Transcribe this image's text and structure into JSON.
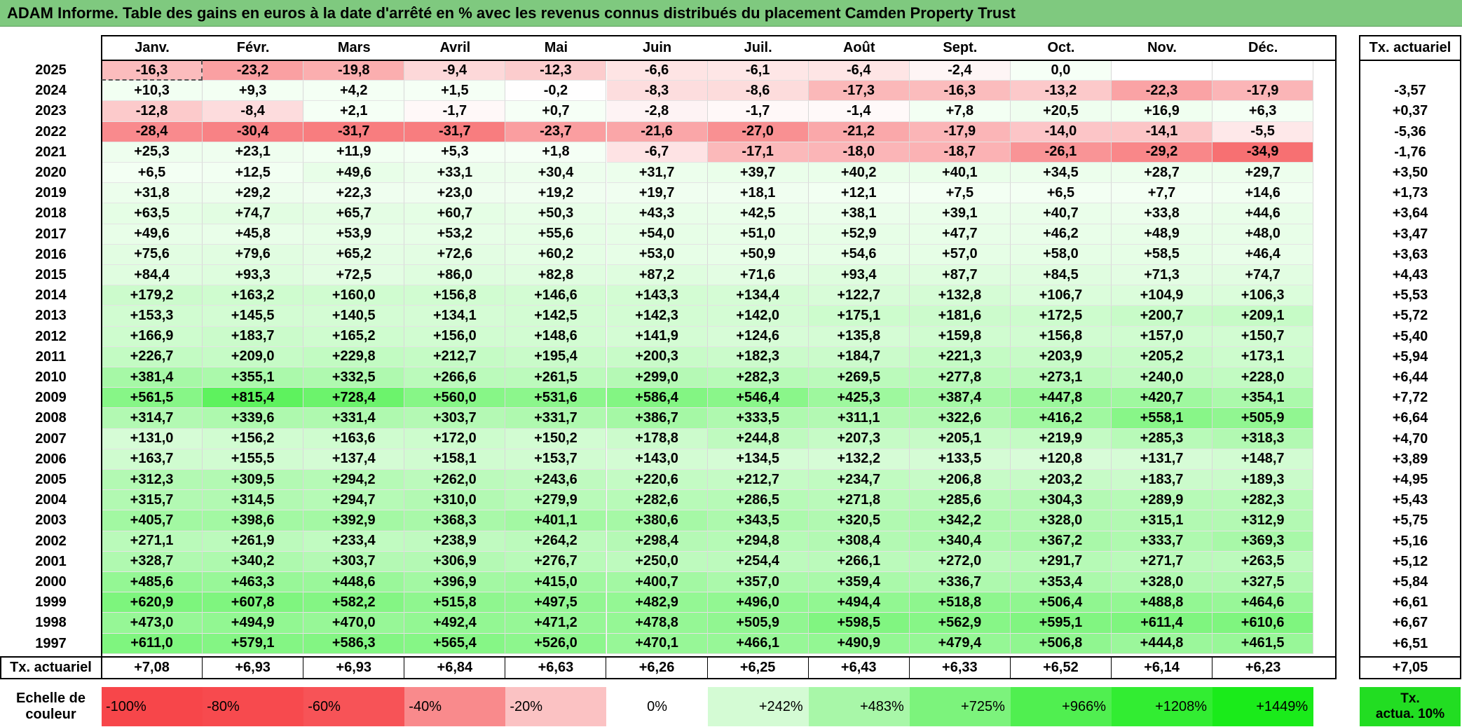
{
  "title": "ADAM Informe. Table des gains en euros à la date d'arrêté en % avec les revenus connus distribués du placement Camden Property Trust",
  "months": [
    "Janv.",
    "Févr.",
    "Mars",
    "Avril",
    "Mai",
    "Juin",
    "Juil.",
    "Août",
    "Sept.",
    "Oct.",
    "Nov.",
    "Déc."
  ],
  "annual_header": "Tx. actuariel",
  "rows": [
    {
      "year": "2025",
      "values": [
        "-16,3",
        "-23,2",
        "-19,8",
        "-9,4",
        "-12,3",
        "-6,6",
        "-6,1",
        "-6,4",
        "-2,4",
        "0,0",
        "",
        ""
      ],
      "rate": ""
    },
    {
      "year": "2024",
      "values": [
        "+10,3",
        "+9,3",
        "+4,2",
        "+1,5",
        "-0,2",
        "-8,3",
        "-8,6",
        "-17,3",
        "-16,3",
        "-13,2",
        "-22,3",
        "-17,9"
      ],
      "rate": "-3,57"
    },
    {
      "year": "2023",
      "values": [
        "-12,8",
        "-8,4",
        "+2,1",
        "-1,7",
        "+0,7",
        "-2,8",
        "-1,7",
        "-1,4",
        "+7,8",
        "+20,5",
        "+16,9",
        "+6,3"
      ],
      "rate": "+0,37"
    },
    {
      "year": "2022",
      "values": [
        "-28,4",
        "-30,4",
        "-31,7",
        "-31,7",
        "-23,7",
        "-21,6",
        "-27,0",
        "-21,2",
        "-17,9",
        "-14,0",
        "-14,1",
        "-5,5"
      ],
      "rate": "-5,36"
    },
    {
      "year": "2021",
      "values": [
        "+25,3",
        "+23,1",
        "+11,9",
        "+5,3",
        "+1,8",
        "-6,7",
        "-17,1",
        "-18,0",
        "-18,7",
        "-26,1",
        "-29,2",
        "-34,9"
      ],
      "rate": "-1,76"
    },
    {
      "year": "2020",
      "values": [
        "+6,5",
        "+12,5",
        "+49,6",
        "+33,1",
        "+30,4",
        "+31,7",
        "+39,7",
        "+40,2",
        "+40,1",
        "+34,5",
        "+28,7",
        "+29,7"
      ],
      "rate": "+3,50"
    },
    {
      "year": "2019",
      "values": [
        "+31,8",
        "+29,2",
        "+22,3",
        "+23,0",
        "+19,2",
        "+19,7",
        "+18,1",
        "+12,1",
        "+7,5",
        "+6,5",
        "+7,7",
        "+14,6"
      ],
      "rate": "+1,73"
    },
    {
      "year": "2018",
      "values": [
        "+63,5",
        "+74,7",
        "+65,7",
        "+60,7",
        "+50,3",
        "+43,3",
        "+42,5",
        "+38,1",
        "+39,1",
        "+40,7",
        "+33,8",
        "+44,6"
      ],
      "rate": "+3,64"
    },
    {
      "year": "2017",
      "values": [
        "+49,6",
        "+45,8",
        "+53,9",
        "+53,2",
        "+55,6",
        "+54,0",
        "+51,0",
        "+52,9",
        "+47,7",
        "+46,2",
        "+48,9",
        "+48,0"
      ],
      "rate": "+3,47"
    },
    {
      "year": "2016",
      "values": [
        "+75,6",
        "+79,6",
        "+65,2",
        "+72,6",
        "+60,2",
        "+53,0",
        "+50,9",
        "+54,6",
        "+57,0",
        "+58,0",
        "+58,5",
        "+46,4"
      ],
      "rate": "+3,63"
    },
    {
      "year": "2015",
      "values": [
        "+84,4",
        "+93,3",
        "+72,5",
        "+86,0",
        "+82,8",
        "+87,2",
        "+71,6",
        "+93,4",
        "+87,7",
        "+84,5",
        "+71,3",
        "+74,7"
      ],
      "rate": "+4,43"
    },
    {
      "year": "2014",
      "values": [
        "+179,2",
        "+163,2",
        "+160,0",
        "+156,8",
        "+146,6",
        "+143,3",
        "+134,4",
        "+122,7",
        "+132,8",
        "+106,7",
        "+104,9",
        "+106,3"
      ],
      "rate": "+5,53"
    },
    {
      "year": "2013",
      "values": [
        "+153,3",
        "+145,5",
        "+140,5",
        "+134,1",
        "+142,5",
        "+142,3",
        "+142,0",
        "+175,1",
        "+181,6",
        "+172,5",
        "+200,7",
        "+209,1"
      ],
      "rate": "+5,72"
    },
    {
      "year": "2012",
      "values": [
        "+166,9",
        "+183,7",
        "+165,2",
        "+156,0",
        "+148,6",
        "+141,9",
        "+124,6",
        "+135,8",
        "+159,8",
        "+156,8",
        "+157,0",
        "+150,7"
      ],
      "rate": "+5,40"
    },
    {
      "year": "2011",
      "values": [
        "+226,7",
        "+209,0",
        "+229,8",
        "+212,7",
        "+195,4",
        "+200,3",
        "+182,3",
        "+184,7",
        "+221,3",
        "+203,9",
        "+205,2",
        "+173,1"
      ],
      "rate": "+5,94"
    },
    {
      "year": "2010",
      "values": [
        "+381,4",
        "+355,1",
        "+332,5",
        "+266,6",
        "+261,5",
        "+299,0",
        "+282,3",
        "+269,5",
        "+277,8",
        "+273,1",
        "+240,0",
        "+228,0"
      ],
      "rate": "+6,44"
    },
    {
      "year": "2009",
      "values": [
        "+561,5",
        "+815,4",
        "+728,4",
        "+560,0",
        "+531,6",
        "+586,4",
        "+546,4",
        "+425,3",
        "+387,4",
        "+447,8",
        "+420,7",
        "+354,1"
      ],
      "rate": "+7,72"
    },
    {
      "year": "2008",
      "values": [
        "+314,7",
        "+339,6",
        "+331,4",
        "+303,7",
        "+331,7",
        "+386,7",
        "+333,5",
        "+311,1",
        "+322,6",
        "+416,2",
        "+558,1",
        "+505,9"
      ],
      "rate": "+6,64"
    },
    {
      "year": "2007",
      "values": [
        "+131,0",
        "+156,2",
        "+163,6",
        "+172,0",
        "+150,2",
        "+178,8",
        "+244,8",
        "+207,3",
        "+205,1",
        "+219,9",
        "+285,3",
        "+318,3"
      ],
      "rate": "+4,70"
    },
    {
      "year": "2006",
      "values": [
        "+163,7",
        "+155,5",
        "+137,4",
        "+158,1",
        "+153,7",
        "+143,0",
        "+134,5",
        "+132,2",
        "+133,5",
        "+120,8",
        "+131,7",
        "+148,7"
      ],
      "rate": "+3,89"
    },
    {
      "year": "2005",
      "values": [
        "+312,3",
        "+309,5",
        "+294,2",
        "+262,0",
        "+243,6",
        "+220,6",
        "+212,7",
        "+234,7",
        "+206,8",
        "+203,2",
        "+183,7",
        "+189,3"
      ],
      "rate": "+4,95"
    },
    {
      "year": "2004",
      "values": [
        "+315,7",
        "+314,5",
        "+294,7",
        "+310,0",
        "+279,9",
        "+282,6",
        "+286,5",
        "+271,8",
        "+285,6",
        "+304,3",
        "+289,9",
        "+282,3"
      ],
      "rate": "+5,43"
    },
    {
      "year": "2003",
      "values": [
        "+405,7",
        "+398,6",
        "+392,9",
        "+368,3",
        "+401,1",
        "+380,6",
        "+343,5",
        "+320,5",
        "+342,2",
        "+328,0",
        "+315,1",
        "+312,9"
      ],
      "rate": "+5,75"
    },
    {
      "year": "2002",
      "values": [
        "+271,1",
        "+261,9",
        "+233,4",
        "+238,9",
        "+264,2",
        "+298,4",
        "+294,8",
        "+308,4",
        "+340,4",
        "+367,2",
        "+333,7",
        "+369,3"
      ],
      "rate": "+5,16"
    },
    {
      "year": "2001",
      "values": [
        "+328,7",
        "+340,2",
        "+303,7",
        "+306,9",
        "+276,7",
        "+250,0",
        "+254,4",
        "+266,1",
        "+272,0",
        "+291,7",
        "+271,7",
        "+263,5"
      ],
      "rate": "+5,12"
    },
    {
      "year": "2000",
      "values": [
        "+485,6",
        "+463,3",
        "+448,6",
        "+396,9",
        "+415,0",
        "+400,7",
        "+357,0",
        "+359,4",
        "+336,7",
        "+353,4",
        "+328,0",
        "+327,5"
      ],
      "rate": "+5,84"
    },
    {
      "year": "1999",
      "values": [
        "+620,9",
        "+607,8",
        "+582,2",
        "+515,8",
        "+497,5",
        "+482,9",
        "+496,0",
        "+494,4",
        "+518,8",
        "+506,4",
        "+488,8",
        "+464,6"
      ],
      "rate": "+6,61"
    },
    {
      "year": "1998",
      "values": [
        "+473,0",
        "+494,9",
        "+470,0",
        "+492,4",
        "+471,2",
        "+478,8",
        "+505,9",
        "+598,5",
        "+562,9",
        "+595,1",
        "+611,4",
        "+610,6"
      ],
      "rate": "+6,67"
    },
    {
      "year": "1997",
      "values": [
        "+611,0",
        "+579,1",
        "+586,3",
        "+565,4",
        "+526,0",
        "+470,1",
        "+466,1",
        "+490,9",
        "+479,4",
        "+506,8",
        "+444,8",
        "+461,5"
      ],
      "rate": "+6,51"
    }
  ],
  "summary": {
    "label": "Tx. actuariel",
    "values": [
      "+7,08",
      "+6,93",
      "+6,93",
      "+6,84",
      "+6,63",
      "+6,26",
      "+6,25",
      "+6,43",
      "+6,33",
      "+6,52",
      "+6,14",
      "+6,23"
    ],
    "total": "+7,05"
  },
  "scale": {
    "label_line1": "Echelle de",
    "label_line2": "couleur",
    "items": [
      {
        "label": "-100%",
        "color": "#f7464a"
      },
      {
        "label": "-80%",
        "color": "#f74a4e"
      },
      {
        "label": "-60%",
        "color": "#f75357"
      },
      {
        "label": "-40%",
        "color": "#f98a8c"
      },
      {
        "label": "-20%",
        "color": "#fbc2c3"
      },
      {
        "label": "0%",
        "color": "#ffffff"
      },
      {
        "label": "+242%",
        "color": "#d4fbd4"
      },
      {
        "label": "+483%",
        "color": "#a8f7a8"
      },
      {
        "label": "+725%",
        "color": "#7cf37c"
      },
      {
        "label": "+966%",
        "color": "#50ef50"
      },
      {
        "label": "+1208%",
        "color": "#32ed32"
      },
      {
        "label": "+1449%",
        "color": "#1aeb1a"
      }
    ],
    "right_line1": "Tx.",
    "right_line2": "actua. 10%",
    "right_color": "#22dd22"
  },
  "colors": {
    "title_bg": "#7fc97f",
    "negative_max": "#f76b6e",
    "positive_max": "#5df25d"
  }
}
